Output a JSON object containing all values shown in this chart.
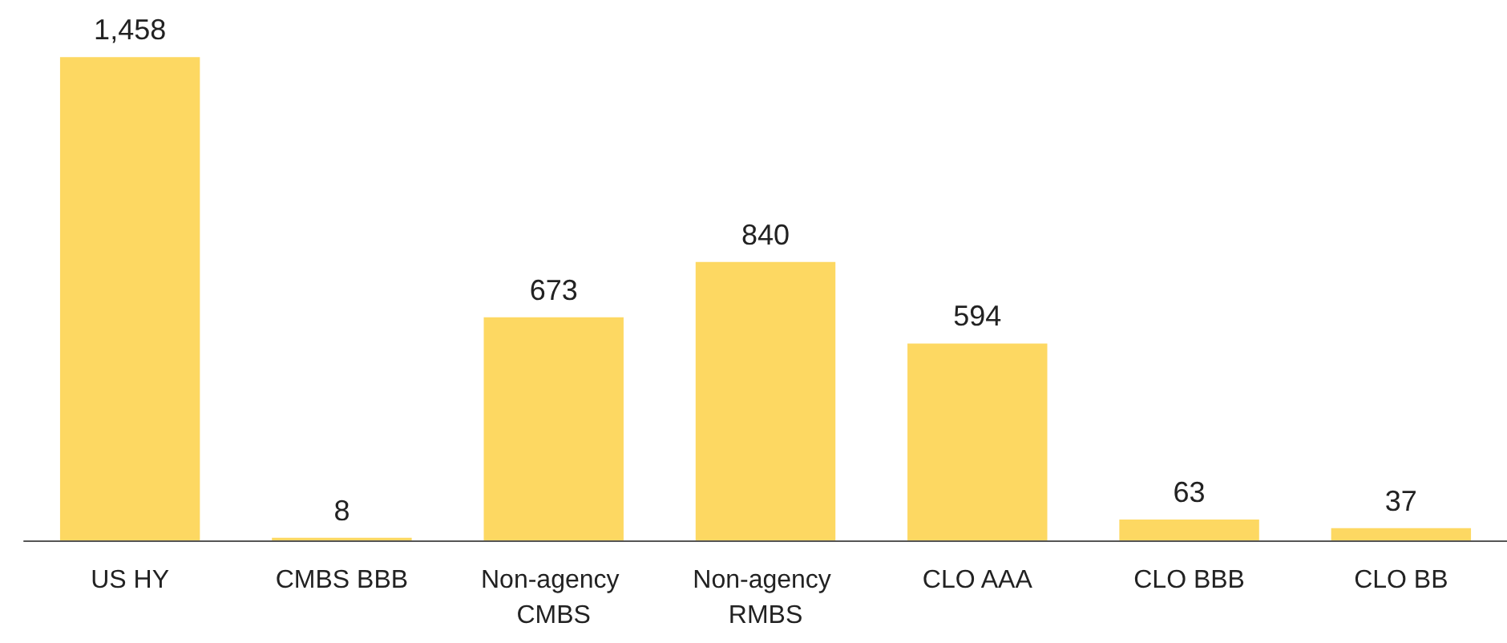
{
  "chart_data": {
    "type": "bar",
    "categories": [
      "US HY",
      "CMBS BBB",
      "Non-agency CMBS",
      "Non-agency RMBS",
      "CLO AAA",
      "CLO BBB",
      "CLO BB"
    ],
    "values": [
      1458,
      8,
      673,
      840,
      594,
      63,
      37
    ],
    "value_labels": [
      "1,458",
      "8",
      "673",
      "840",
      "594",
      "63",
      "37"
    ],
    "color": "#fdd862"
  }
}
